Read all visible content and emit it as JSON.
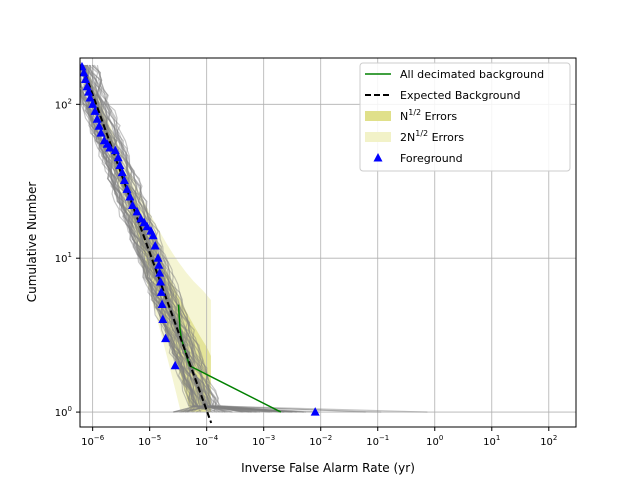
{
  "chart_data": {
    "type": "line",
    "title": "",
    "xlabel": "Inverse False Alarm Rate (yr)",
    "ylabel": "Cumulative Number",
    "xscale": "log",
    "yscale": "log",
    "xlim": [
      6e-07,
      300
    ],
    "ylim": [
      0.8,
      200
    ],
    "grid": true,
    "legend_position": "upper right",
    "x_ticks": [
      {
        "value": 1e-06,
        "label": "10",
        "exp": "−6"
      },
      {
        "value": 1e-05,
        "label": "10",
        "exp": "−5"
      },
      {
        "value": 0.0001,
        "label": "10",
        "exp": "−4"
      },
      {
        "value": 0.001,
        "label": "10",
        "exp": "−3"
      },
      {
        "value": 0.01,
        "label": "10",
        "exp": "−2"
      },
      {
        "value": 0.1,
        "label": "10",
        "exp": "−1"
      },
      {
        "value": 1,
        "label": "10",
        "exp": "0"
      },
      {
        "value": 10,
        "label": "10",
        "exp": "1"
      },
      {
        "value": 100,
        "label": "10",
        "exp": "2"
      }
    ],
    "y_ticks": [
      {
        "value": 1,
        "label": "10",
        "exp": "0"
      },
      {
        "value": 10,
        "label": "10",
        "exp": "1"
      },
      {
        "value": 100,
        "label": "10",
        "exp": "2"
      }
    ],
    "legend": [
      {
        "label": "All decimated background",
        "kind": "line",
        "color": "#008000"
      },
      {
        "label": "Expected Background",
        "kind": "dashed",
        "color": "#000000"
      },
      {
        "label": "N",
        "sup": "1/2",
        "suffix": " Errors",
        "kind": "patch",
        "color": "#e0e08a"
      },
      {
        "label": "2N",
        "sup": "1/2",
        "suffix": " Errors",
        "kind": "patch",
        "color": "#f2f2c8"
      },
      {
        "label": "Foreground",
        "kind": "marker",
        "color": "#0000ff"
      }
    ],
    "series": [
      {
        "name": "All decimated background",
        "color": "#008000",
        "points": [
          [
            3.2e-05,
            5
          ],
          [
            3.4e-05,
            3.5
          ],
          [
            3.6e-05,
            3
          ],
          [
            5e-05,
            2
          ],
          [
            0.002,
            1
          ]
        ]
      },
      {
        "name": "Expected Background",
        "color": "#000000",
        "points": [
          [
            6.5e-07,
            180
          ],
          [
            0.00012,
            0.85
          ]
        ]
      },
      {
        "name": "Foreground",
        "color": "#0000ff",
        "points": [
          [
            6.5e-07,
            175
          ],
          [
            7e-07,
            160
          ],
          [
            7.5e-07,
            145
          ],
          [
            8e-07,
            130
          ],
          [
            8.5e-07,
            120
          ],
          [
            9e-07,
            110
          ],
          [
            1e-06,
            100
          ],
          [
            1.1e-06,
            90
          ],
          [
            1.2e-06,
            80
          ],
          [
            1.3e-06,
            72
          ],
          [
            1.4e-06,
            65
          ],
          [
            1.6e-06,
            58
          ],
          [
            1.8e-06,
            55
          ],
          [
            2e-06,
            52
          ],
          [
            2.5e-06,
            50
          ],
          [
            2.8e-06,
            45
          ],
          [
            3e-06,
            40
          ],
          [
            3.3e-06,
            36
          ],
          [
            3.6e-06,
            32
          ],
          [
            4e-06,
            28
          ],
          [
            4.5e-06,
            25
          ],
          [
            5e-06,
            22
          ],
          [
            6e-06,
            20
          ],
          [
            7e-06,
            18
          ],
          [
            8e-06,
            17
          ],
          [
            9e-06,
            16
          ],
          [
            1.05e-05,
            15
          ],
          [
            1.15e-05,
            14
          ],
          [
            1.25e-05,
            12
          ],
          [
            1.4e-05,
            10
          ],
          [
            1.45e-05,
            9
          ],
          [
            1.5e-05,
            8
          ],
          [
            1.55e-05,
            7
          ],
          [
            1.6e-05,
            6
          ],
          [
            1.65e-05,
            5
          ],
          [
            1.7e-05,
            4
          ],
          [
            1.9e-05,
            3
          ],
          [
            2.8e-05,
            2
          ],
          [
            0.008,
            1
          ]
        ]
      }
    ],
    "background_trials_count": 60
  }
}
